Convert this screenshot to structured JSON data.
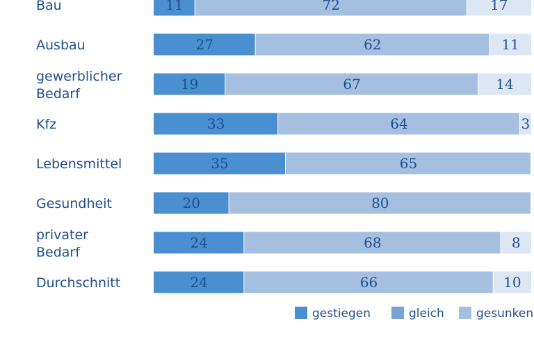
{
  "chart_data": {
    "type": "bar",
    "orientation": "horizontal",
    "stacked": true,
    "categories": [
      [
        "Bau"
      ],
      [
        "Ausbau"
      ],
      [
        "gewerblicher",
        "Bedarf"
      ],
      [
        "Kfz"
      ],
      [
        "Lebensmittel"
      ],
      [
        "Gesundheit"
      ],
      [
        "privater",
        "Bedarf"
      ],
      [
        "Durchschnitt"
      ]
    ],
    "series": [
      {
        "name": "gestiegen",
        "color": "#4a8fd0",
        "values": [
          11,
          27,
          19,
          33,
          35,
          20,
          24,
          24
        ]
      },
      {
        "name": "gleich",
        "color": "#a4bfe0",
        "values": [
          72,
          62,
          67,
          64,
          65,
          80,
          68,
          66
        ]
      },
      {
        "name": "gesunken",
        "color": "#dde7f3",
        "values": [
          17,
          11,
          14,
          3,
          0,
          0,
          8,
          10
        ]
      }
    ],
    "value_labels": [
      [
        "11",
        "72",
        "17"
      ],
      [
        "27",
        "62",
        "11"
      ],
      [
        "19",
        "67",
        "14"
      ],
      [
        "33",
        "64",
        "3"
      ],
      [
        "35",
        "65",
        ""
      ],
      [
        "20",
        "80",
        ""
      ],
      [
        "24",
        "68",
        "8"
      ],
      [
        "24",
        "66",
        "10"
      ]
    ],
    "xlim": [
      0,
      100
    ],
    "legend_position": "bottom-right",
    "legend_swatch_colors": [
      "#4a8fd0",
      "#78a3d8",
      "#a4bfe0"
    ],
    "grid": false
  }
}
